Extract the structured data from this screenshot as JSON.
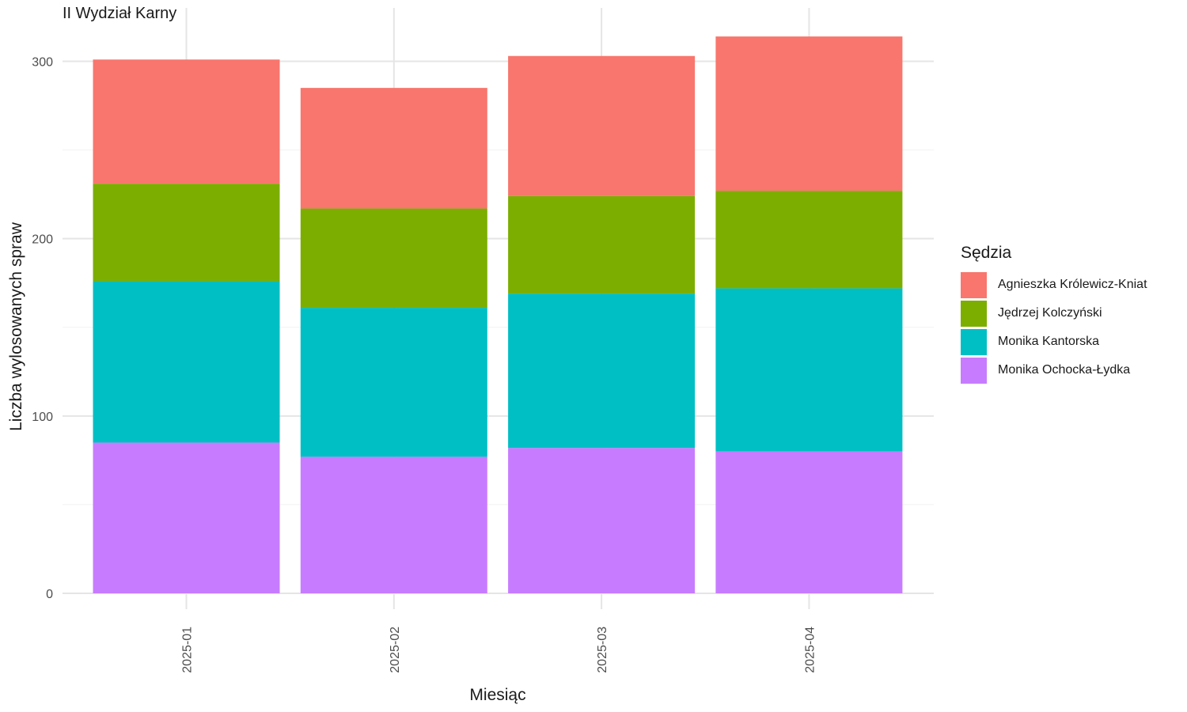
{
  "chart_data": {
    "type": "bar",
    "stacked": true,
    "title": "II Wydział Karny",
    "xlabel": "Miesiąc",
    "ylabel": "Liczba wylosowanych spraw",
    "ylim": [
      0,
      320
    ],
    "yticks": [
      0,
      100,
      200,
      300
    ],
    "grid": true,
    "legend_position": "right",
    "legend_title": "Sędzia",
    "categories": [
      "2025-01",
      "2025-02",
      "2025-03",
      "2025-04"
    ],
    "series": [
      {
        "name": "Agnieszka Królewicz-Kniat",
        "color": "#F8766D",
        "values": [
          70,
          68,
          79,
          87
        ]
      },
      {
        "name": "Jędrzej Kolczyński",
        "color": "#7CAE00",
        "values": [
          55,
          56,
          55,
          55
        ]
      },
      {
        "name": "Monika Kantorska",
        "color": "#00BFC4",
        "values": [
          91,
          84,
          87,
          92
        ]
      },
      {
        "name": "Monika Ochocka-Łydka",
        "color": "#C77CFF",
        "values": [
          85,
          77,
          82,
          80
        ]
      }
    ]
  }
}
